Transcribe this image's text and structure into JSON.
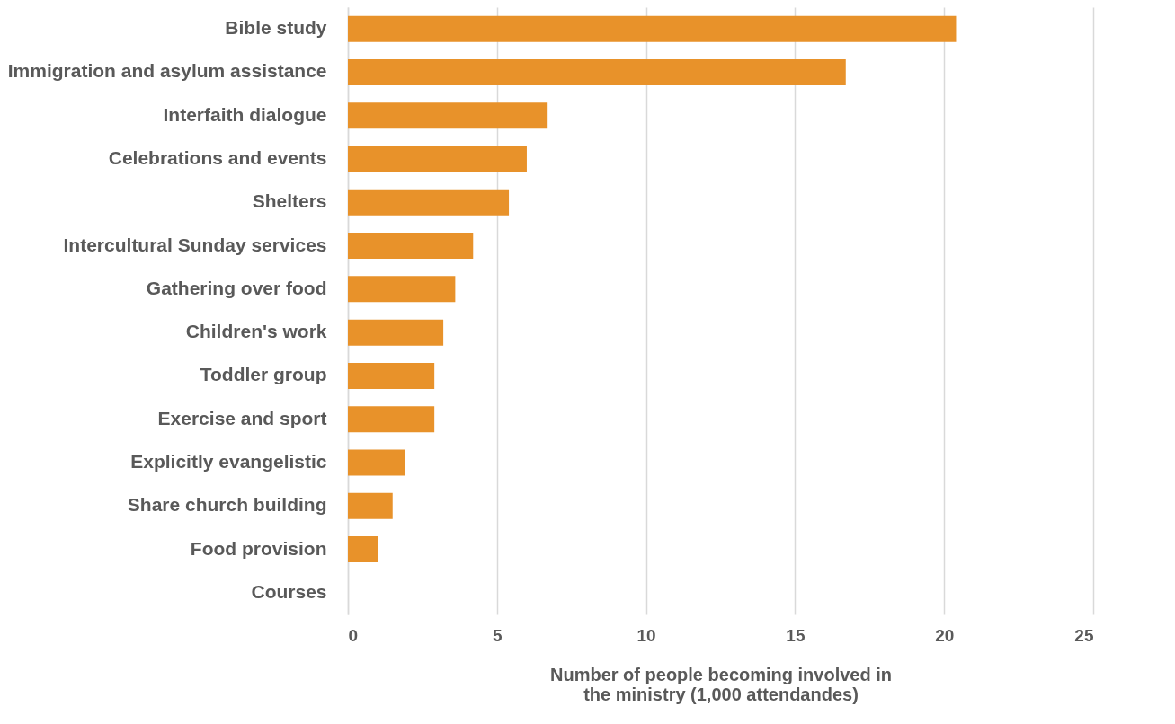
{
  "chart_data": {
    "type": "bar",
    "orientation": "horizontal",
    "xlabel": "Number of people becoming involved in the ministry (1,000 attendandes)",
    "categories": [
      "Bible study",
      "Immigration and asylum assistance",
      "Interfaith dialogue",
      "Celebrations and events",
      "Shelters",
      "Intercultural Sunday services",
      "Gathering over food",
      "Children's work",
      "Toddler group",
      "Exercise and sport",
      "Explicitly evangelistic",
      "Share church building",
      "Food provision",
      "Courses"
    ],
    "values": [
      20.4,
      16.7,
      6.7,
      6.0,
      5.4,
      4.2,
      3.6,
      3.2,
      2.9,
      2.9,
      1.9,
      1.5,
      1.0,
      0
    ],
    "color": "#e8922a",
    "xlim": [
      0,
      25
    ],
    "xticks": [
      0,
      5,
      10,
      15,
      20,
      25
    ],
    "grid": "x"
  }
}
